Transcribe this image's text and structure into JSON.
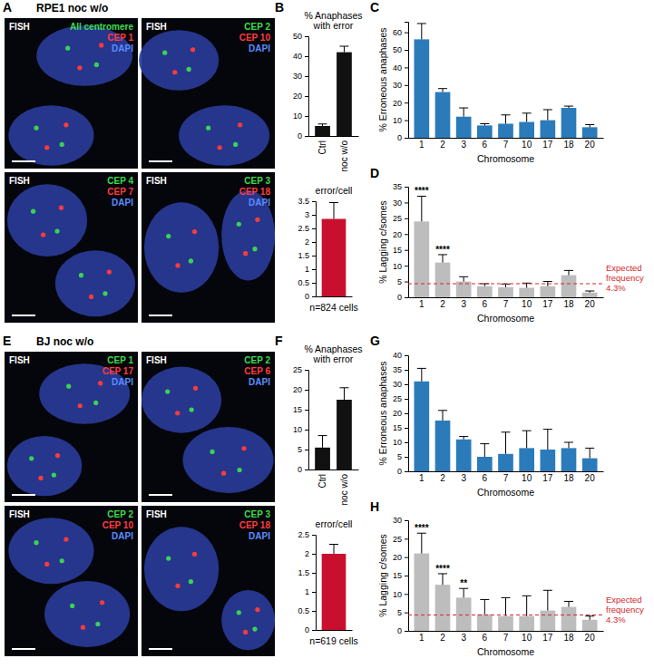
{
  "panel_letters": [
    "A",
    "B",
    "C",
    "D",
    "E",
    "F",
    "G",
    "H"
  ],
  "image_panels": [
    {
      "title": "RPE1 noc w/o",
      "images": [
        {
          "labels": [
            {
              "text": "FISH",
              "color": "#ffffff"
            },
            {
              "text": "All centromere",
              "color": "#3ddc4a"
            },
            {
              "text": "CEP 1",
              "color": "#ff3b3b"
            },
            {
              "text": "DAPI",
              "color": "#5a8cff"
            }
          ]
        },
        {
          "labels": [
            {
              "text": "FISH",
              "color": "#ffffff"
            },
            {
              "text": "CEP 2",
              "color": "#3ddc4a"
            },
            {
              "text": "CEP 10",
              "color": "#ff3b3b"
            },
            {
              "text": "DAPI",
              "color": "#5a8cff"
            }
          ]
        },
        {
          "labels": [
            {
              "text": "FISH",
              "color": "#ffffff"
            },
            {
              "text": "CEP 4",
              "color": "#3ddc4a"
            },
            {
              "text": "CEP 7",
              "color": "#ff3b3b"
            },
            {
              "text": "DAPI",
              "color": "#5a8cff"
            }
          ]
        },
        {
          "labels": [
            {
              "text": "FISH",
              "color": "#ffffff"
            },
            {
              "text": "CEP 3",
              "color": "#3ddc4a"
            },
            {
              "text": "CEP 18",
              "color": "#ff3b3b"
            },
            {
              "text": "DAPI",
              "color": "#5a8cff"
            }
          ]
        }
      ]
    },
    {
      "title": "BJ noc w/o",
      "images": [
        {
          "labels": [
            {
              "text": "FISH",
              "color": "#ffffff"
            },
            {
              "text": "CEP 1",
              "color": "#3ddc4a"
            },
            {
              "text": "CEP 17",
              "color": "#ff3b3b"
            },
            {
              "text": "DAPI",
              "color": "#5a8cff"
            }
          ]
        },
        {
          "labels": [
            {
              "text": "FISH",
              "color": "#ffffff"
            },
            {
              "text": "CEP 2",
              "color": "#3ddc4a"
            },
            {
              "text": "CEP 6",
              "color": "#ff3b3b"
            },
            {
              "text": "DAPI",
              "color": "#5a8cff"
            }
          ]
        },
        {
          "labels": [
            {
              "text": "FISH",
              "color": "#ffffff"
            },
            {
              "text": "CEP 2",
              "color": "#3ddc4a"
            },
            {
              "text": "CEP 10",
              "color": "#ff3b3b"
            },
            {
              "text": "DAPI",
              "color": "#5a8cff"
            }
          ]
        },
        {
          "labels": [
            {
              "text": "FISH",
              "color": "#ffffff"
            },
            {
              "text": "CEP 3",
              "color": "#3ddc4a"
            },
            {
              "text": "CEP 18",
              "color": "#ff3b3b"
            },
            {
              "text": "DAPI",
              "color": "#5a8cff"
            }
          ]
        }
      ]
    }
  ],
  "chart_data": [
    {
      "type": "bar",
      "title": "% Anaphases with error",
      "categories": [
        "Ctrl",
        "noc w/o"
      ],
      "values": [
        5,
        42
      ],
      "errors": [
        1,
        3
      ],
      "color": "#111111",
      "ylim": [
        0,
        50
      ],
      "yticks": [
        0,
        10,
        20,
        30,
        40,
        50
      ]
    },
    {
      "type": "bar",
      "title": "error/cell",
      "xlabel": "n=824 cells",
      "categories": [
        null
      ],
      "values": [
        2.85
      ],
      "errors": [
        0.6
      ],
      "color": "#c8102e",
      "ylim": [
        0,
        3.5
      ],
      "yticks": [
        0,
        0.5,
        1,
        1.5,
        2,
        2.5,
        3,
        3.5
      ]
    },
    {
      "type": "bar",
      "ylabel": "% Erroneous anaphases",
      "xlabel": "Chromosome",
      "categories": [
        "1",
        "2",
        "3",
        "6",
        "7",
        "10",
        "17",
        "18",
        "20"
      ],
      "values": [
        56,
        26,
        12,
        7,
        8,
        9,
        10,
        17,
        6
      ],
      "errors": [
        9,
        2,
        5,
        1,
        5,
        5,
        6,
        1,
        1.5
      ],
      "color": "#2b7bba",
      "ylim": [
        0,
        66
      ],
      "yticks": [
        0,
        10,
        20,
        30,
        40,
        50,
        60
      ]
    },
    {
      "type": "bar",
      "ylabel": "% Lagging c/somes",
      "xlabel": "Chromosome",
      "categories": [
        "1",
        "2",
        "3",
        "6",
        "7",
        "10",
        "17",
        "18",
        "20"
      ],
      "values": [
        24,
        11,
        5,
        3.5,
        3.2,
        3,
        3.5,
        7,
        1.5
      ],
      "errors": [
        8,
        2.5,
        1.5,
        0.8,
        1,
        1.5,
        1.5,
        1.5,
        0.5
      ],
      "color": "#bdbdbd",
      "ylim": [
        0,
        35
      ],
      "yticks": [
        0,
        5,
        10,
        15,
        20,
        25,
        30,
        35
      ],
      "significance": [
        "****",
        "****",
        null,
        null,
        null,
        null,
        null,
        null,
        null
      ],
      "reference_line": {
        "value": 4.3,
        "label": [
          "Expected",
          "frequency",
          "4.3%"
        ],
        "color": "#d62728",
        "line_style": "dashed"
      }
    },
    {
      "type": "bar",
      "title": "% Anaphases with error",
      "categories": [
        "Ctrl",
        "noc w/o"
      ],
      "values": [
        5.5,
        17.5
      ],
      "errors": [
        3,
        3
      ],
      "color": "#111111",
      "ylim": [
        0,
        25
      ],
      "yticks": [
        0,
        5,
        10,
        15,
        20,
        25
      ]
    },
    {
      "type": "bar",
      "title": "error/cell",
      "xlabel": "n=619 cells",
      "categories": [
        null
      ],
      "values": [
        2.0
      ],
      "errors": [
        0.25
      ],
      "color": "#c8102e",
      "ylim": [
        0,
        2.5
      ],
      "yticks": [
        0,
        0.5,
        1,
        1.5,
        2,
        2.5
      ]
    },
    {
      "type": "bar",
      "ylabel": "% Erroneous anaphases",
      "xlabel": "Chromosome",
      "categories": [
        "1",
        "2",
        "3",
        "6",
        "7",
        "10",
        "17",
        "18",
        "20"
      ],
      "values": [
        31,
        17.5,
        11,
        5,
        6,
        8,
        7.5,
        8,
        4.5
      ],
      "errors": [
        4.5,
        3.5,
        1,
        4.5,
        7.5,
        6,
        7,
        2,
        3.5
      ],
      "color": "#2b7bba",
      "ylim": [
        0,
        40
      ],
      "yticks": [
        0,
        5,
        10,
        15,
        20,
        25,
        30,
        35,
        40
      ]
    },
    {
      "type": "bar",
      "ylabel": "% Lagging c/somes",
      "xlabel": "Chromosome",
      "categories": [
        "1",
        "2",
        "3",
        "6",
        "7",
        "10",
        "17",
        "18",
        "20"
      ],
      "values": [
        21,
        12.5,
        9,
        4.5,
        4,
        4,
        5.5,
        6.5,
        3
      ],
      "errors": [
        5.5,
        3,
        2.5,
        4,
        5,
        5.5,
        5.5,
        1.5,
        1
      ],
      "color": "#bdbdbd",
      "ylim": [
        0,
        30
      ],
      "yticks": [
        0,
        5,
        10,
        15,
        20,
        25,
        30
      ],
      "significance": [
        "****",
        "****",
        "**",
        null,
        null,
        null,
        null,
        null,
        null
      ],
      "reference_line": {
        "value": 4.3,
        "label": [
          "Expected",
          "frequency",
          "4.3%"
        ],
        "color": "#d62728",
        "line_style": "dashed"
      }
    }
  ]
}
